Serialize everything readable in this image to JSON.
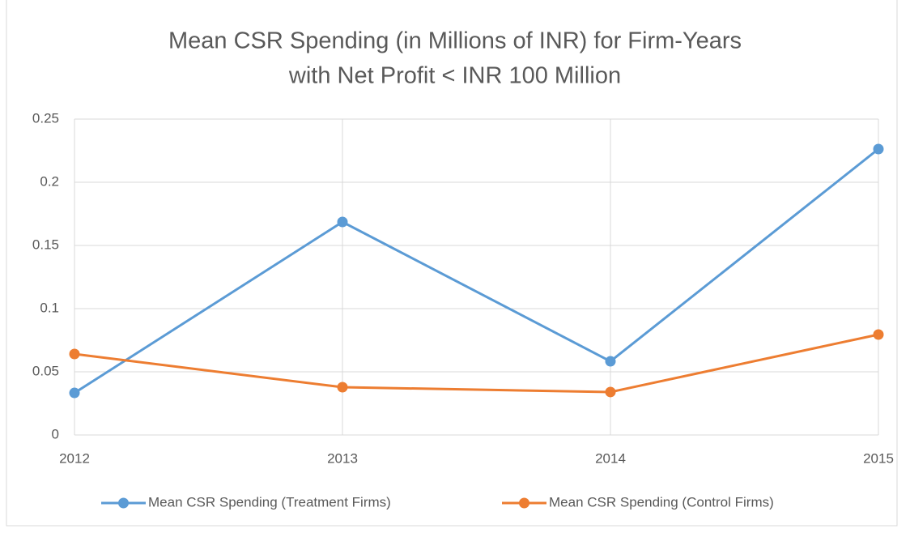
{
  "chart_data": {
    "type": "line",
    "title": [
      "Mean CSR Spending (in Millions of INR) for Firm-Years",
      "with Net Profit < INR 100 Million"
    ],
    "x": [
      2012,
      2013,
      2014,
      2015
    ],
    "xlim": [
      2012,
      2015
    ],
    "xticks": [
      2012,
      2013,
      2014,
      2015
    ],
    "ylim": [
      0,
      0.25
    ],
    "yticks": [
      0,
      0.05,
      0.1,
      0.15,
      0.2,
      0.25
    ],
    "grid": true,
    "legend": "bottom",
    "series": [
      {
        "name": "Mean CSR Spending (Treatment Firms)",
        "color": "#5b9bd5",
        "values": [
          0.0333,
          0.1686,
          0.0583,
          0.2263
        ]
      },
      {
        "name": "Mean CSR Spending (Control Firms)",
        "color": "#ed7d31",
        "values": [
          0.0641,
          0.0378,
          0.034,
          0.0795
        ]
      }
    ]
  }
}
